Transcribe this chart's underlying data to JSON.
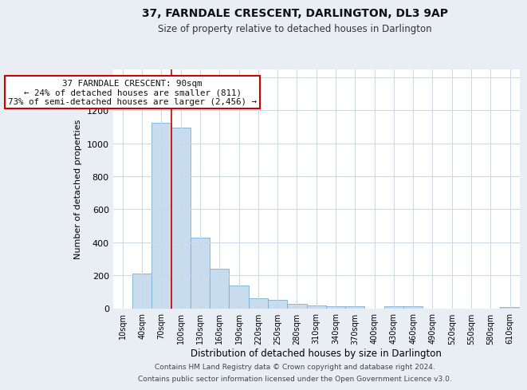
{
  "title": "37, FARNDALE CRESCENT, DARLINGTON, DL3 9AP",
  "subtitle": "Size of property relative to detached houses in Darlington",
  "xlabel": "Distribution of detached houses by size in Darlington",
  "ylabel": "Number of detached properties",
  "bar_labels": [
    "10sqm",
    "40sqm",
    "70sqm",
    "100sqm",
    "130sqm",
    "160sqm",
    "190sqm",
    "220sqm",
    "250sqm",
    "280sqm",
    "310sqm",
    "340sqm",
    "370sqm",
    "400sqm",
    "430sqm",
    "460sqm",
    "490sqm",
    "520sqm",
    "550sqm",
    "580sqm",
    "610sqm"
  ],
  "bar_values": [
    0,
    210,
    1125,
    1095,
    430,
    240,
    140,
    60,
    50,
    25,
    18,
    10,
    10,
    0,
    10,
    10,
    0,
    0,
    0,
    0,
    5
  ],
  "bar_color": "#c9dcee",
  "bar_edge_color": "#7aafd4",
  "ylim": [
    0,
    1450
  ],
  "yticks": [
    0,
    200,
    400,
    600,
    800,
    1000,
    1200,
    1400
  ],
  "red_line_x": 2.5,
  "ann_line1": "37 FARNDALE CRESCENT: 90sqm",
  "ann_line2": "← 24% of detached houses are smaller (811)",
  "ann_line3": "73% of semi-detached houses are larger (2,456) →",
  "footnote1": "Contains HM Land Registry data © Crown copyright and database right 2024.",
  "footnote2": "Contains public sector information licensed under the Open Government Licence v3.0.",
  "bg_color": "#e8eef4",
  "plot_bg_color": "#ffffff",
  "grid_color": "#c8d8e8"
}
